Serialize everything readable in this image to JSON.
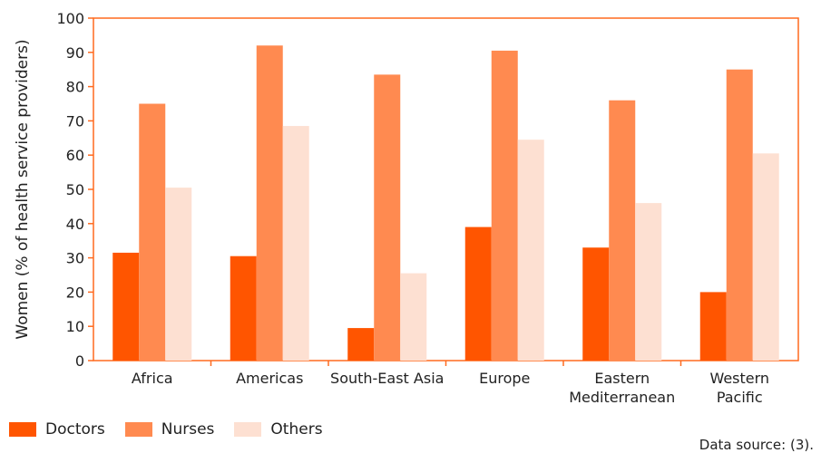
{
  "chart_data": {
    "type": "bar",
    "ylabel": "Women (% of health service providers)",
    "ylim": [
      0,
      100
    ],
    "yticks": [
      0,
      10,
      20,
      30,
      40,
      50,
      60,
      70,
      80,
      90,
      100
    ],
    "categories": [
      [
        "Africa"
      ],
      [
        "Americas"
      ],
      [
        "South-East Asia"
      ],
      [
        "Europe"
      ],
      [
        "Eastern",
        "Mediterranean"
      ],
      [
        "Western",
        "Pacific"
      ]
    ],
    "series": [
      {
        "name": "Doctors",
        "color": "#ff5500",
        "values": [
          31.5,
          30.5,
          9.5,
          39,
          33,
          20
        ]
      },
      {
        "name": "Nurses",
        "color": "#ff8a50",
        "values": [
          75,
          92,
          83.5,
          90.5,
          76,
          85
        ]
      },
      {
        "name": "Others",
        "color": "#fde0d2",
        "values": [
          50.5,
          68.5,
          25.5,
          64.5,
          46,
          60.5
        ]
      }
    ],
    "grid": false,
    "legend_position": "bottom-left",
    "axis_color": "#ff6a1f"
  },
  "source_text": "Data source: (3)."
}
